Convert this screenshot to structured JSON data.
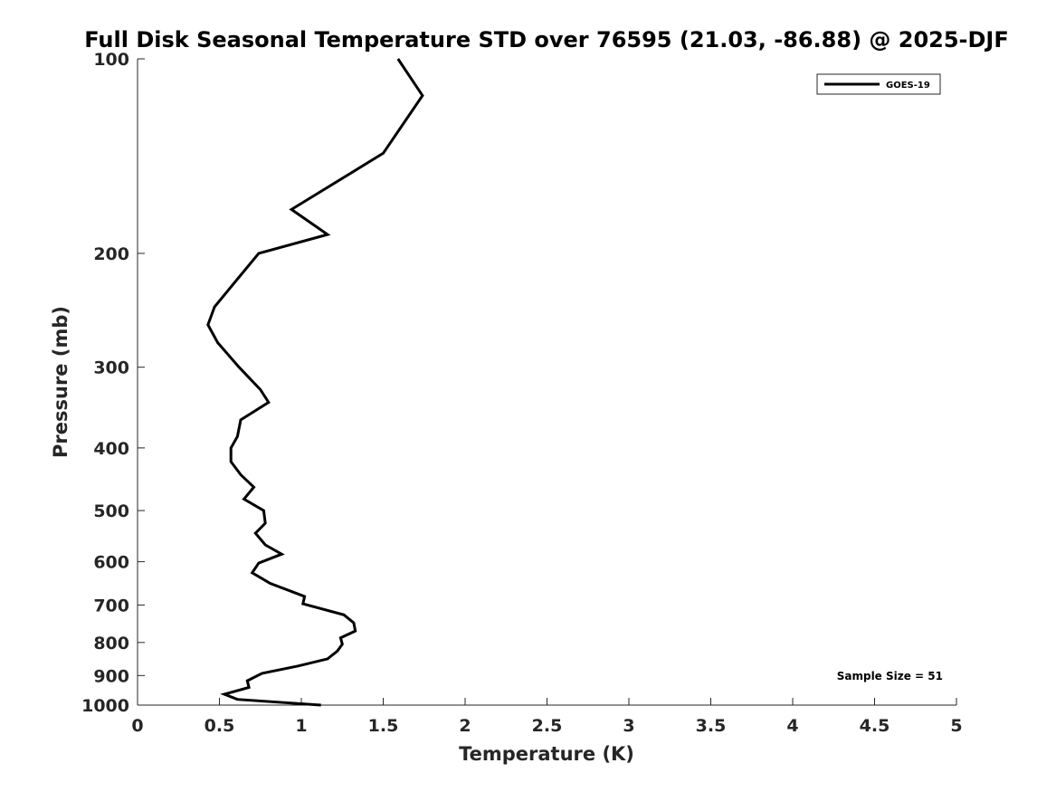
{
  "chart_data": {
    "type": "line",
    "title": "Full Disk Seasonal Temperature STD over 76595 (21.03, -86.88) @ 2025-DJF",
    "xlabel": "Temperature (K)",
    "ylabel": "Pressure (mb)",
    "xlim": [
      0,
      5
    ],
    "ylim": [
      1000,
      100
    ],
    "yscale": "log",
    "y_reversed": true,
    "grid": false,
    "x_ticks": [
      0,
      0.5,
      1,
      1.5,
      2,
      2.5,
      3,
      3.5,
      4,
      4.5,
      5
    ],
    "x_tick_labels": [
      "0",
      "0.5",
      "1",
      "1.5",
      "2",
      "2.5",
      "3",
      "3.5",
      "4",
      "4.5",
      "5"
    ],
    "y_ticks": [
      100,
      200,
      300,
      400,
      500,
      600,
      700,
      800,
      900,
      1000
    ],
    "y_tick_labels": [
      "100",
      "200",
      "300",
      "400",
      "500",
      "600",
      "700",
      "800",
      "900",
      "1000"
    ],
    "legend_position": "top-right",
    "annotation": "Sample Size = 51",
    "series": [
      {
        "name": "GOES-19",
        "color": "#000000",
        "x": [
          1.59,
          1.74,
          1.5,
          0.94,
          1.16,
          0.74,
          0.47,
          0.43,
          0.49,
          0.62,
          0.75,
          0.8,
          0.63,
          0.61,
          0.57,
          0.57,
          0.63,
          0.71,
          0.65,
          0.77,
          0.78,
          0.72,
          0.78,
          0.88,
          0.74,
          0.7,
          0.81,
          1.02,
          1.01,
          1.26,
          1.32,
          1.33,
          1.24,
          1.25,
          1.22,
          1.16,
          0.98,
          0.76,
          0.67,
          0.68,
          0.53,
          0.61,
          1.12
        ],
        "y": [
          100,
          114,
          140,
          171,
          187,
          200,
          242,
          258,
          275,
          300,
          325,
          340,
          362,
          384,
          400,
          420,
          440,
          460,
          480,
          500,
          523,
          542,
          565,
          584,
          603,
          624,
          648,
          679,
          697,
          725,
          746,
          768,
          787,
          805,
          825,
          848,
          870,
          893,
          917,
          939,
          962,
          980,
          1000
        ]
      }
    ]
  }
}
